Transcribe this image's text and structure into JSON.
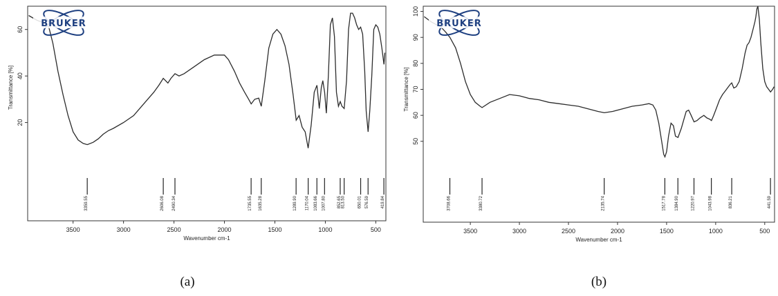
{
  "logo_text": "BRUKER",
  "colors": {
    "line": "#2b2b2b",
    "logo": "#1d3f80"
  },
  "chart_data": [
    {
      "type": "line",
      "panel_label": "(a)",
      "xlabel": "Wavenumber cm-1",
      "ylabel": "Transmittance [%]",
      "x_reversed": true,
      "xlim": [
        3950,
        400
      ],
      "ylim": [
        0,
        70
      ],
      "x_ticks": [
        3500,
        3000,
        2500,
        2000,
        1500,
        1000,
        500
      ],
      "y_ticks": [
        20,
        40,
        60
      ],
      "peaks": [
        "3359.55",
        "2606.08",
        "2490.34",
        "1735.55",
        "1635.28",
        "1289.90",
        "1170.04",
        "1083.66",
        "1007.80",
        "852.65",
        "813.50",
        "650.01",
        "576.59",
        "419.84"
      ],
      "peak_wavenumbers": [
        3359.55,
        2606.08,
        2490.34,
        1735.55,
        1635.28,
        1289.9,
        1170.04,
        1083.66,
        1007.8,
        852.65,
        813.5,
        650.01,
        576.59,
        419.84
      ],
      "series": [
        {
          "x": [
            3940,
            3860,
            3800,
            3760,
            3740,
            3700,
            3650,
            3600,
            3550,
            3500,
            3450,
            3400,
            3359,
            3300,
            3250,
            3200,
            3150,
            3100,
            3000,
            2900,
            2800,
            2700,
            2650,
            2606,
            2560,
            2530,
            2490,
            2450,
            2400,
            2300,
            2200,
            2100,
            2000,
            1960,
            1900,
            1850,
            1800,
            1760,
            1735,
            1700,
            1660,
            1635,
            1600,
            1560,
            1520,
            1480,
            1440,
            1400,
            1360,
            1320,
            1289,
            1260,
            1230,
            1200,
            1170,
            1140,
            1110,
            1083,
            1060,
            1040,
            1025,
            1007,
            990,
            970,
            950,
            930,
            910,
            890,
            870,
            852,
            835,
            813,
            790,
            770,
            750,
            730,
            710,
            690,
            670,
            650,
            630,
            610,
            595,
            576,
            560,
            540,
            520,
            500,
            480,
            460,
            440,
            419,
            410
          ],
          "y": [
            66,
            64,
            63,
            62,
            61,
            54,
            42,
            32,
            23,
            16,
            12.5,
            11,
            10.5,
            11.5,
            13,
            15,
            16.5,
            17.5,
            20,
            23,
            28,
            33,
            36,
            39,
            37,
            39,
            41,
            40,
            41,
            44,
            47,
            49,
            49,
            47,
            42,
            37,
            33,
            30,
            28,
            30,
            30.5,
            27,
            38,
            52,
            58,
            60,
            58,
            53,
            45,
            32,
            21,
            23,
            18,
            16,
            9,
            19,
            33,
            36,
            26,
            35,
            38,
            33,
            24,
            40,
            62,
            65,
            57,
            33,
            27,
            29,
            27,
            26,
            38,
            60,
            67,
            67,
            65,
            62,
            60,
            61,
            58,
            42,
            25,
            16,
            25,
            40,
            60,
            62,
            61,
            58,
            52,
            45,
            50
          ]
        }
      ]
    },
    {
      "type": "line",
      "panel_label": "(b)",
      "xlabel": "Wavenumber cm-1",
      "ylabel": "Transmittance [%]",
      "x_reversed": true,
      "xlim": [
        3980,
        400
      ],
      "ylim": [
        38,
        102
      ],
      "x_ticks": [
        3500,
        3000,
        2500,
        2000,
        1500,
        1000,
        500
      ],
      "y_ticks": [
        50,
        60,
        70,
        80,
        90,
        100
      ],
      "peaks": [
        "3708.66",
        "3380.72",
        "2135.74",
        "1517.78",
        "1384.90",
        "1220.97",
        "1043.98",
        "836.21",
        "441.59"
      ],
      "peak_wavenumbers": [
        3708.66,
        3380.72,
        2135.74,
        1517.78,
        1384.9,
        1220.97,
        1043.98,
        836.21,
        441.59
      ],
      "series": [
        {
          "x": [
            3970,
            3900,
            3850,
            3800,
            3750,
            3708,
            3650,
            3600,
            3550,
            3500,
            3450,
            3400,
            3380,
            3300,
            3200,
            3100,
            3000,
            2900,
            2800,
            2700,
            2600,
            2500,
            2400,
            2300,
            2200,
            2135,
            2050,
            1950,
            1850,
            1750,
            1680,
            1640,
            1610,
            1580,
            1550,
            1530,
            1517,
            1500,
            1480,
            1455,
            1430,
            1410,
            1384,
            1350,
            1320,
            1300,
            1275,
            1250,
            1220,
            1190,
            1160,
            1120,
            1090,
            1060,
            1043,
            1020,
            990,
            960,
            930,
            900,
            870,
            850,
            836,
            815,
            790,
            760,
            730,
            700,
            680,
            660,
            640,
            620,
            600,
            590,
            580,
            570,
            555,
            540,
            520,
            500,
            480,
            460,
            441,
            420,
            405
          ],
          "y": [
            98,
            96,
            95,
            94,
            92,
            90,
            86,
            80,
            73,
            68,
            65,
            63.5,
            63,
            65,
            66.5,
            68,
            67.5,
            66.5,
            66,
            65,
            64.5,
            64,
            63.5,
            62.5,
            61.5,
            61,
            61.5,
            62.5,
            63.5,
            64,
            64.5,
            64,
            62,
            57,
            50,
            45,
            44,
            46,
            52,
            57,
            56,
            52,
            51.5,
            55,
            59,
            61.5,
            62,
            60,
            57.5,
            58,
            59,
            60,
            59,
            58.5,
            58,
            60,
            63,
            66,
            68,
            69.5,
            71,
            72,
            72.5,
            70.5,
            71,
            73,
            78,
            84,
            87,
            88,
            90,
            93,
            96,
            98,
            101,
            102,
            97,
            88,
            78,
            73,
            71,
            70,
            69,
            70,
            71
          ]
        }
      ]
    }
  ]
}
